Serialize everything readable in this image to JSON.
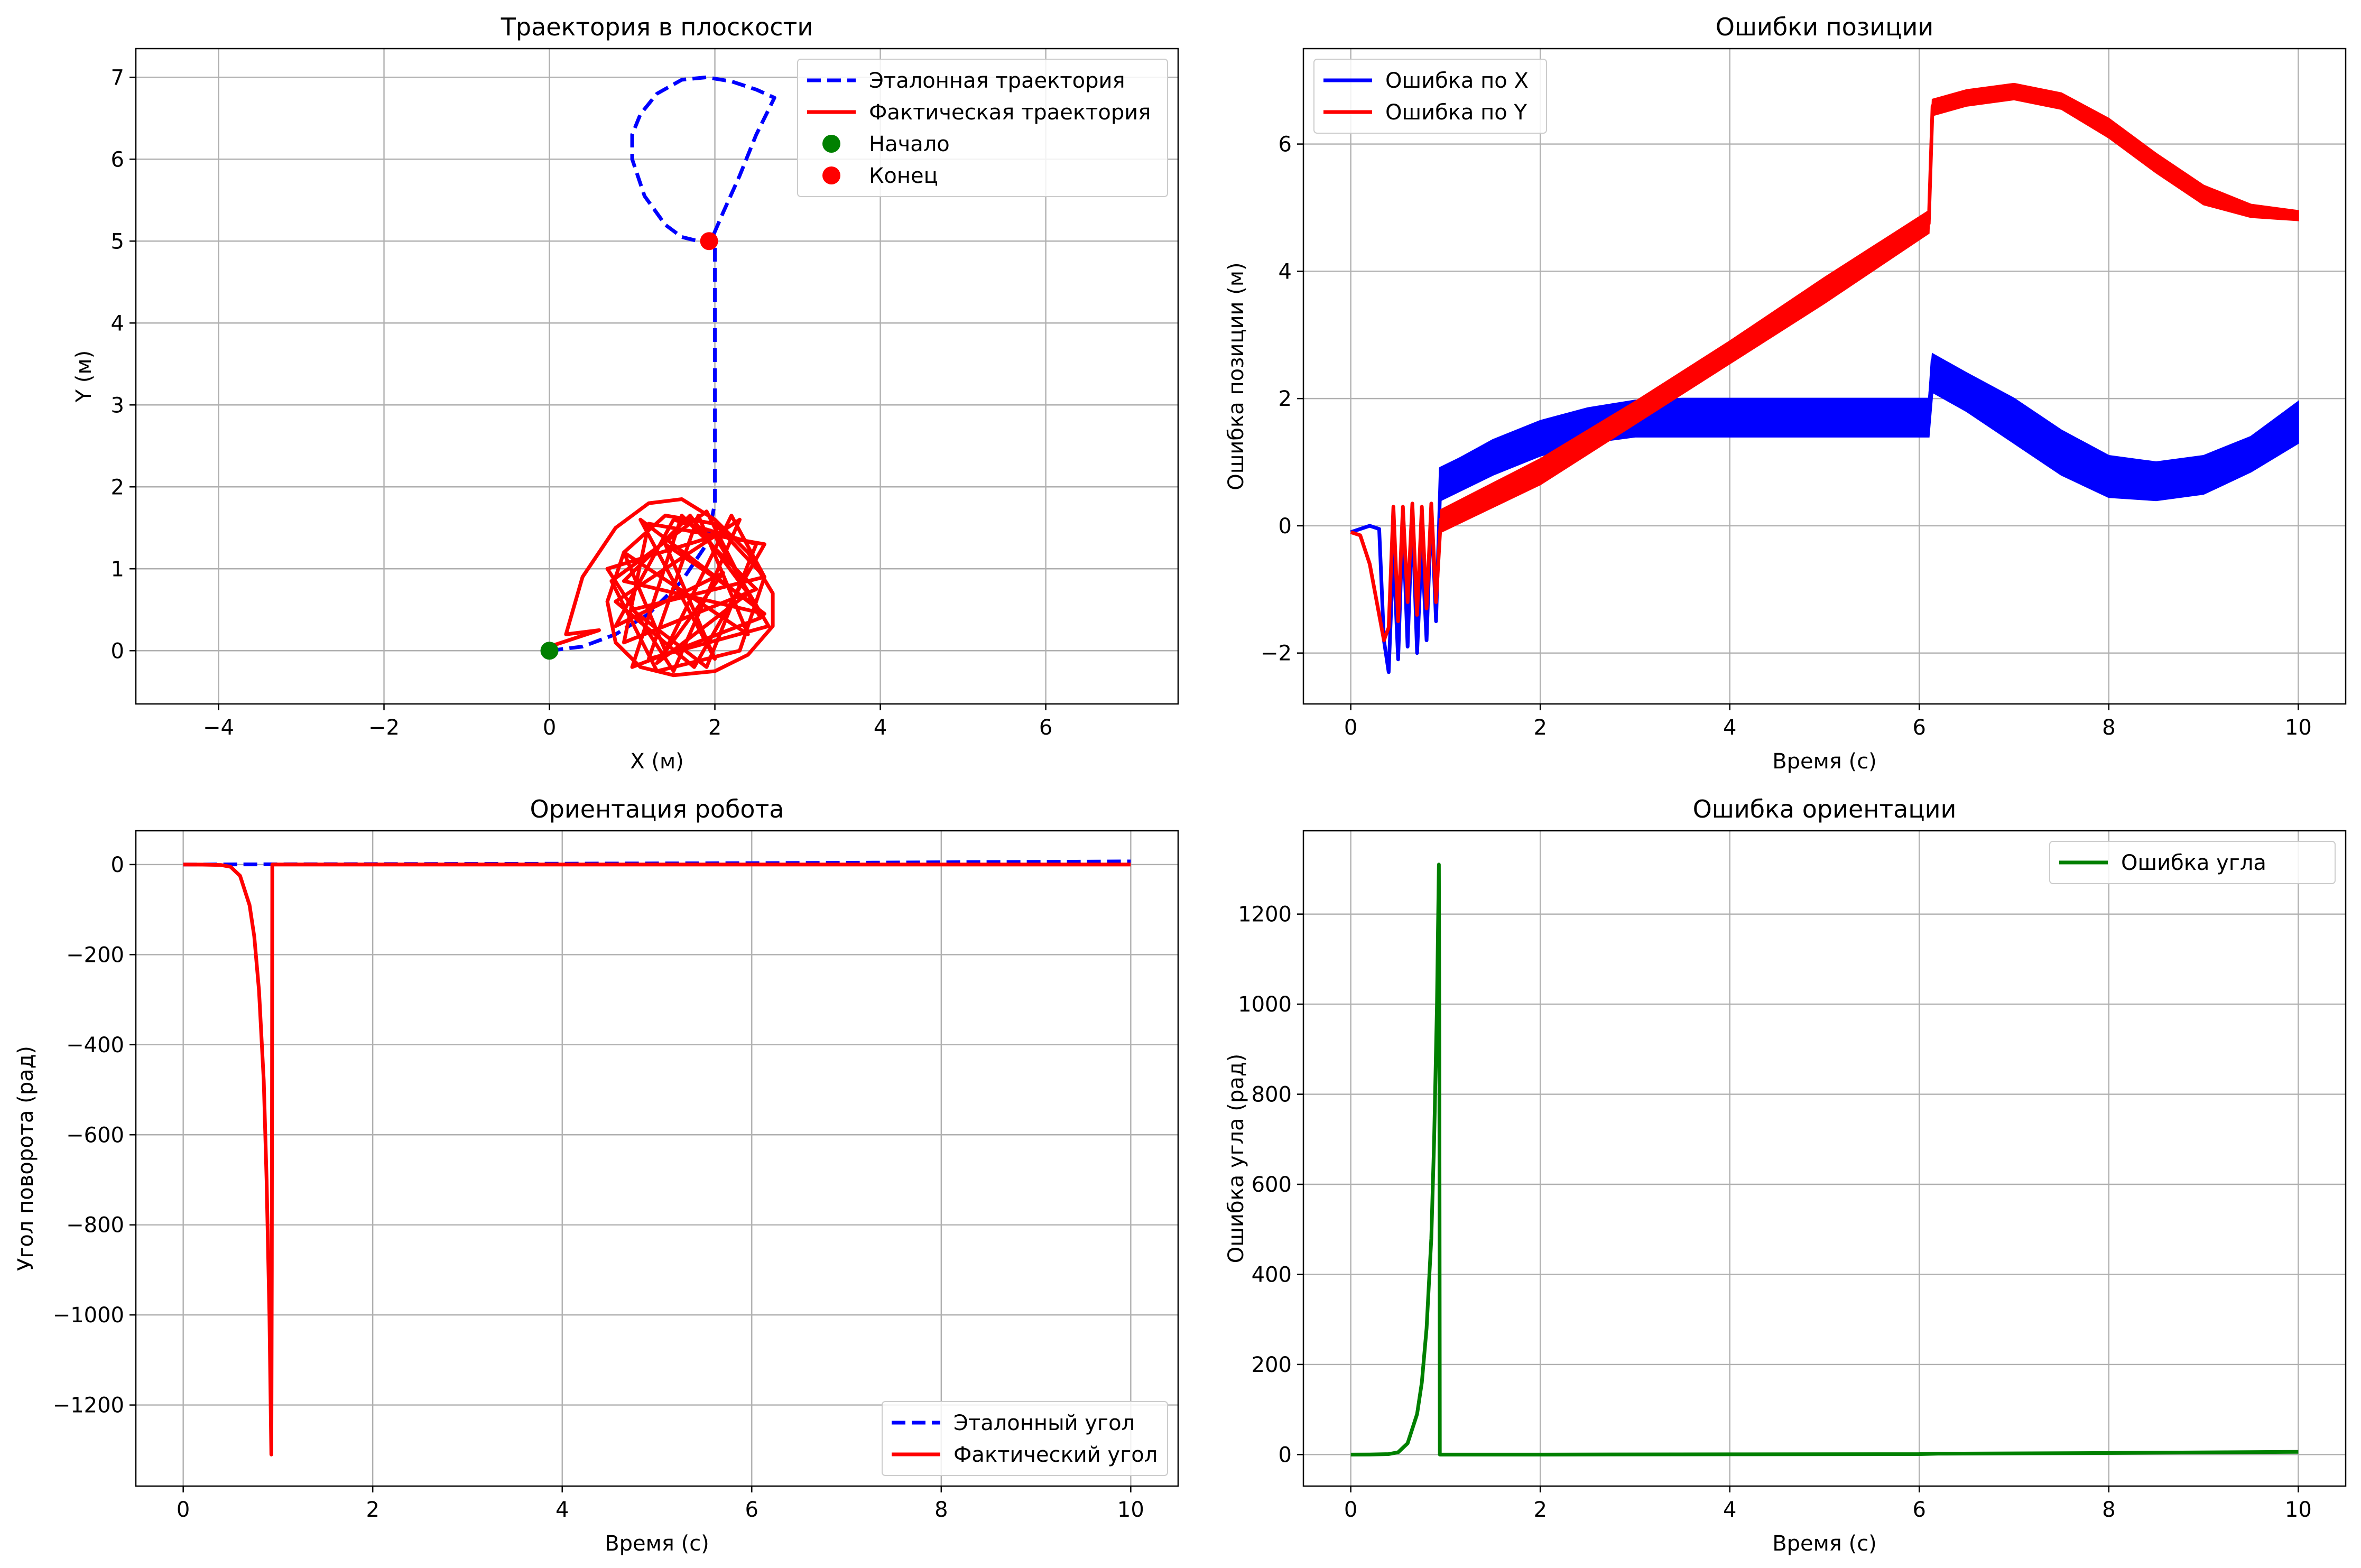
{
  "chart_data": [
    {
      "type": "line",
      "title": "Траектория в плоскости",
      "xlabel": "X (м)",
      "ylabel": "Y (м)",
      "xlim": [
        -5,
        7.6
      ],
      "ylim": [
        -0.65,
        7.35
      ],
      "xticks": [
        -4,
        -2,
        0,
        2,
        4,
        6
      ],
      "yticks": [
        0,
        1,
        2,
        3,
        4,
        5,
        6,
        7
      ],
      "xtick_labels": [
        "−4",
        "−2",
        "0",
        "2",
        "4",
        "6"
      ],
      "ytick_labels": [
        "0",
        "1",
        "2",
        "3",
        "4",
        "5",
        "6",
        "7"
      ],
      "grid": true,
      "legend_position": "upper right",
      "series": [
        {
          "name": "Эталонная траектория",
          "color": "#0000ff",
          "style": "dashed",
          "x": [
            0,
            0.4,
            0.8,
            1.2,
            1.6,
            1.9,
            2.0,
            2.0,
            2.0,
            2.0,
            2.0,
            2.0,
            2.0,
            1.95,
            1.8,
            1.6,
            1.4,
            1.15,
            1.0,
            1.0,
            1.1,
            1.3,
            1.6,
            1.9,
            2.2,
            2.5,
            2.72,
            2.5,
            2.3,
            2.1,
            1.95
          ],
          "y": [
            0,
            0.05,
            0.2,
            0.45,
            0.85,
            1.3,
            1.8,
            2.5,
            3.2,
            3.9,
            4.5,
            4.85,
            5.0,
            5.0,
            5.0,
            5.05,
            5.2,
            5.55,
            6.0,
            6.3,
            6.55,
            6.8,
            6.97,
            7.0,
            6.95,
            6.85,
            6.75,
            6.3,
            5.8,
            5.35,
            5.0
          ]
        },
        {
          "name": "Фактическая траектория",
          "color": "#ff0000",
          "style": "solid",
          "x": [
            0,
            0.6,
            0.2,
            0.4,
            0.8,
            1.2,
            1.6,
            2.0,
            2.4,
            2.7,
            2.7,
            2.4,
            2.0,
            1.5,
            1.1,
            0.8,
            0.7,
            0.9,
            1.4,
            2.0,
            2.6,
            2.3,
            1.3,
            0.75,
            1.9,
            2.55,
            1.0,
            1.6,
            2.5,
            0.9,
            1.2,
            2.6,
            1.75,
            0.8,
            2.3,
            1.5,
            0.7,
            2.0,
            2.65,
            1.2,
            1.8,
            2.4,
            0.9,
            1.4,
            2.2,
            2.6,
            1.0,
            1.9,
            2.5,
            1.5,
            0.8,
            2.1,
            1.3,
            2.4,
            1.7,
            0.9,
            2.6,
            1.1,
            2.0,
            1.4,
            2.5
          ],
          "y": [
            0.05,
            0.25,
            0.2,
            0.9,
            1.5,
            1.8,
            1.85,
            1.6,
            1.2,
            0.7,
            0.3,
            -0.05,
            -0.25,
            -0.3,
            -0.2,
            0.1,
            0.6,
            1.2,
            1.65,
            1.55,
            0.9,
            0.0,
            -0.25,
            0.85,
            1.7,
            0.4,
            -0.2,
            1.65,
            0.75,
            0.1,
            1.55,
            1.3,
            -0.2,
            0.6,
            1.6,
            -0.25,
            1.0,
            1.4,
            0.3,
            -0.1,
            1.65,
            0.2,
            1.2,
            0.0,
            1.65,
            0.9,
            0.5,
            -0.2,
            1.3,
            1.6,
            0.3,
            0.95,
            -0.15,
            0.7,
            1.65,
            0.85,
            0.45,
            1.6,
            -0.1,
            1.3,
            0.55
          ]
        }
      ],
      "markers": [
        {
          "name": "Начало",
          "color": "#008000",
          "x": 0,
          "y": 0
        },
        {
          "name": "Конец",
          "color": "#ff0000",
          "x": 1.93,
          "y": 5.0
        }
      ]
    },
    {
      "type": "line",
      "title": "Ошибки позиции",
      "xlabel": "Время (с)",
      "ylabel": "Ошибка позиции (м)",
      "xlim": [
        -0.5,
        10.5
      ],
      "ylim": [
        -2.8,
        7.5
      ],
      "xticks": [
        0,
        2,
        4,
        6,
        8,
        10
      ],
      "yticks": [
        -2,
        0,
        2,
        4,
        6
      ],
      "xtick_labels": [
        "0",
        "2",
        "4",
        "6",
        "8",
        "10"
      ],
      "ytick_labels": [
        "−2",
        "0",
        "2",
        "4",
        "6"
      ],
      "grid": true,
      "legend_position": "upper left",
      "series": [
        {
          "name": "Ошибка по X",
          "color": "#0000ff",
          "style": "solid",
          "x": [
            0,
            0.1,
            0.2,
            0.3,
            0.35,
            0.4,
            0.45,
            0.5,
            0.55,
            0.6,
            0.65,
            0.7,
            0.75,
            0.8,
            0.85,
            0.9,
            0.95,
            1.5,
            2.0,
            2.5,
            3.0,
            3.5,
            4.0,
            5.0,
            6.1,
            6.14,
            6.5,
            7.0,
            7.5,
            8.0,
            8.5,
            9.0,
            9.5,
            10.0
          ],
          "y": [
            -0.1,
            -0.05,
            0.0,
            -0.05,
            -1.8,
            -2.3,
            -0.4,
            -2.1,
            0.1,
            -1.9,
            0.2,
            -2.0,
            -0.3,
            -1.8,
            0.3,
            -1.5,
            0.9,
            1.3,
            1.6,
            1.8,
            1.9,
            1.85,
            1.75,
            1.7,
            1.7,
            2.6,
            2.3,
            1.8,
            1.2,
            0.8,
            0.7,
            0.85,
            1.2,
            1.7
          ],
          "band": {
            "x": [
              0.95,
              1.5,
              2.0,
              2.5,
              3.0,
              3.5,
              4.0,
              5.0,
              6.1,
              6.14,
              6.5,
              7.0,
              7.5,
              8.0,
              8.5,
              9.0,
              9.5,
              10.0
            ],
            "upper": [
              0.9,
              1.35,
              1.65,
              1.85,
              1.97,
              2.0,
              2.0,
              2.0,
              2.0,
              2.7,
              2.4,
              2.0,
              1.5,
              1.1,
              1.0,
              1.1,
              1.4,
              1.95
            ],
            "lower": [
              0.4,
              0.8,
              1.1,
              1.3,
              1.4,
              1.4,
              1.4,
              1.4,
              1.4,
              2.1,
              1.8,
              1.3,
              0.8,
              0.45,
              0.4,
              0.5,
              0.85,
              1.3
            ]
          }
        },
        {
          "name": "Ошибка по Y",
          "color": "#ff0000",
          "style": "solid",
          "x": [
            0,
            0.1,
            0.2,
            0.3,
            0.35,
            0.4,
            0.45,
            0.5,
            0.55,
            0.6,
            0.65,
            0.7,
            0.75,
            0.8,
            0.85,
            0.9,
            0.95,
            2.0,
            3.0,
            4.0,
            5.0,
            6.1,
            6.14,
            6.5,
            7.0,
            7.5,
            8.0,
            8.5,
            9.0,
            9.5,
            10.0
          ],
          "y": [
            -0.1,
            -0.15,
            -0.6,
            -1.4,
            -1.8,
            -1.6,
            0.3,
            -1.5,
            0.3,
            -1.2,
            0.35,
            -1.4,
            0.3,
            -1.3,
            0.35,
            -1.2,
            0.1,
            0.85,
            1.8,
            2.75,
            3.7,
            4.75,
            6.6,
            6.75,
            6.85,
            6.7,
            6.25,
            5.7,
            5.2,
            4.95,
            4.9
          ],
          "band": {
            "x": [
              0.95,
              2.0,
              3.0,
              4.0,
              5.0,
              6.1,
              6.14,
              6.5,
              7.0,
              7.5,
              8.0,
              8.5,
              9.0,
              9.5,
              10.0
            ],
            "upper": [
              0.25,
              1.05,
              1.95,
              2.9,
              3.9,
              4.95,
              6.7,
              6.85,
              6.95,
              6.8,
              6.4,
              5.85,
              5.35,
              5.05,
              4.95
            ],
            "lower": [
              -0.1,
              0.65,
              1.6,
              2.55,
              3.5,
              4.6,
              6.45,
              6.6,
              6.7,
              6.55,
              6.1,
              5.55,
              5.05,
              4.85,
              4.8
            ]
          }
        }
      ]
    },
    {
      "type": "line",
      "title": "Ориентация робота",
      "xlabel": "Время (с)",
      "ylabel": "Угол поворота (рад)",
      "xlim": [
        -0.5,
        10.5
      ],
      "ylim": [
        -1380,
        75
      ],
      "xticks": [
        0,
        2,
        4,
        6,
        8,
        10
      ],
      "yticks": [
        0,
        -200,
        -400,
        -600,
        -800,
        -1000,
        -1200
      ],
      "xtick_labels": [
        "0",
        "2",
        "4",
        "6",
        "8",
        "10"
      ],
      "ytick_labels": [
        "0",
        "−200",
        "−400",
        "−600",
        "−800",
        "−1000",
        "−1200"
      ],
      "grid": true,
      "legend_position": "lower right",
      "series": [
        {
          "name": "Эталонный угол",
          "color": "#0000ff",
          "style": "dashed",
          "x": [
            0,
            1,
            2,
            4,
            6,
            8,
            10
          ],
          "y": [
            0,
            0.5,
            1,
            2,
            3,
            5,
            7
          ]
        },
        {
          "name": "Фактический угол",
          "color": "#ff0000",
          "style": "solid",
          "x": [
            0,
            0.2,
            0.4,
            0.5,
            0.6,
            0.7,
            0.75,
            0.8,
            0.85,
            0.88,
            0.91,
            0.93,
            0.935,
            0.94,
            0.95,
            1.0,
            2,
            4,
            6,
            8,
            10
          ],
          "y": [
            0,
            -0.1,
            -1,
            -5,
            -25,
            -90,
            -160,
            -280,
            -480,
            -700,
            -1000,
            -1310,
            -900,
            0,
            0,
            0,
            0,
            0,
            0,
            0,
            0
          ]
        }
      ]
    },
    {
      "type": "line",
      "title": "Ошибка ориентации",
      "xlabel": "Время (с)",
      "ylabel": "Ошибка угла (рад)",
      "xlim": [
        -0.5,
        10.5
      ],
      "ylim": [
        -70,
        1385
      ],
      "xticks": [
        0,
        2,
        4,
        6,
        8,
        10
      ],
      "yticks": [
        0,
        200,
        400,
        600,
        800,
        1000,
        1200
      ],
      "xtick_labels": [
        "0",
        "2",
        "4",
        "6",
        "8",
        "10"
      ],
      "ytick_labels": [
        "0",
        "200",
        "400",
        "600",
        "800",
        "1000",
        "1200"
      ],
      "grid": true,
      "legend_position": "upper right",
      "series": [
        {
          "name": "Ошибка угла",
          "color": "#008000",
          "style": "solid",
          "x": [
            0,
            0.2,
            0.4,
            0.5,
            0.6,
            0.7,
            0.75,
            0.8,
            0.85,
            0.88,
            0.91,
            0.93,
            0.935,
            0.94,
            0.95,
            1.0,
            2,
            4,
            6,
            6.2,
            8,
            10
          ],
          "y": [
            0,
            0.1,
            1,
            5,
            25,
            90,
            160,
            280,
            480,
            700,
            1000,
            1310,
            900,
            0,
            0,
            0,
            0,
            0.5,
            1,
            2,
            3.5,
            6
          ]
        }
      ]
    }
  ]
}
